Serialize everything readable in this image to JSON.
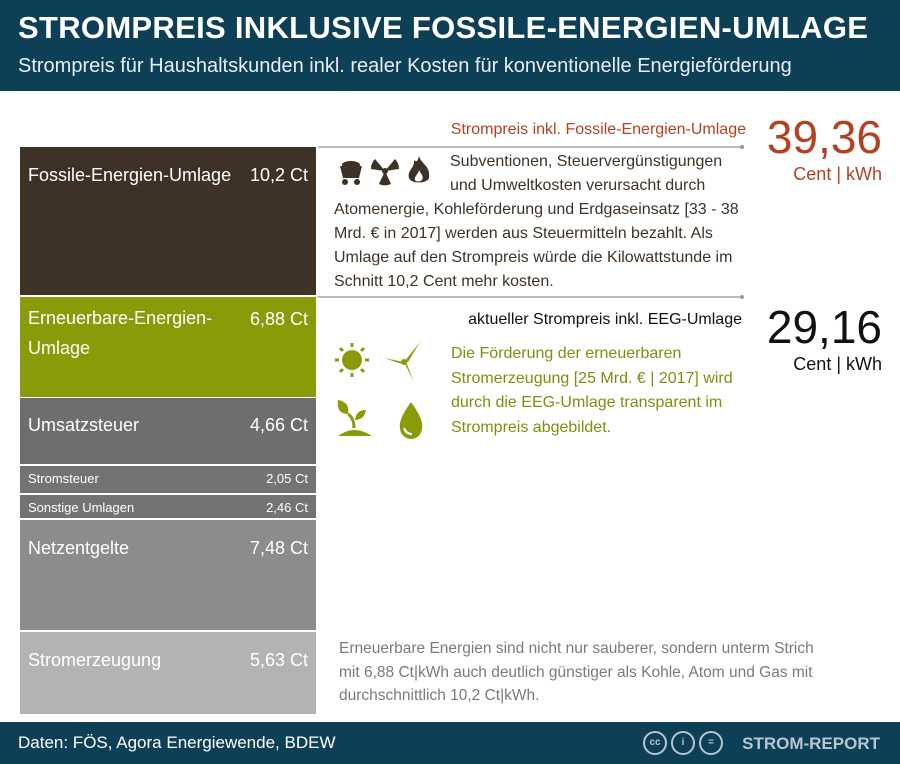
{
  "header": {
    "title": "STROMPREIS INKLUSIVE FOSSILE-ENERGIEN-UMLAGE",
    "subtitle": "Strompreis für Haushaltskunden inkl. realer Kosten für konventionelle Energieförderung"
  },
  "chart_data": {
    "type": "bar",
    "title": "Strompreis inkl. Fossile-Energien-Umlage",
    "unit": "Ct",
    "categories": [
      "Fossile-Energien-Umlage",
      "Erneuerbare-Energien-Umlage",
      "Umsatzsteuer",
      "Stromsteuer",
      "Sonstige Umlagen",
      "Netzentgelte",
      "Stromerzeugung"
    ],
    "values": [
      10.2,
      6.88,
      4.66,
      2.05,
      2.46,
      7.48,
      5.63
    ],
    "value_labels": [
      "10,2 Ct",
      "6,88 Ct",
      "4,66 Ct",
      "2,05 Ct",
      "2,46 Ct",
      "7,48 Ct",
      "5,63 Ct"
    ],
    "colors": [
      "#3e3226",
      "#8a9b0a",
      "#6e6e6e",
      "#737373",
      "#737373",
      "#8c8c8c",
      "#b3b3b3"
    ],
    "stacked": true
  },
  "totals": {
    "fossil": {
      "label": "Strompreis inkl. Fossile-Energien-Umlage",
      "value": "39,36",
      "unit": "Cent | kWh",
      "color": "#b5401f"
    },
    "current": {
      "label": "aktueller Strompreis inkl. EEG-Umlage",
      "value": "29,16",
      "unit": "Cent | kWh",
      "color": "#111111"
    }
  },
  "texts": {
    "fossil_l1": "Subventionen, Steuervergünstigungen",
    "fossil_l2": "und Umweltkosten verursacht durch",
    "fossil_rest": "Atomenergie, Kohleförderung und Erdgaseinsatz [33 - 38 Mrd. € in 2017] werden aus Steuermitteln bezahlt. Als Umlage auf den Strompreis würde die Kilowattstunde im Schnitt 10,2 Cent mehr kosten.",
    "eeg": "Die Förderung der erneuerbaren Stromerzeugung [25 Mrd. € | 2017] wird durch die EEG-Umlage transparent im Strompreis abgebildet.",
    "bottom": "Erneuerbare Energien sind nicht nur sauberer, sondern unterm Strich mit 6,88 Ct|kWh auch deutlich günstiger als Kohle, Atom und Gas mit durchschnittlich 10,2 Ct|kWh."
  },
  "footer": {
    "source": "Daten: FÖS, Agora Energiewende, BDEW",
    "brand": "STROM-REPORT",
    "license_icons": [
      "cc",
      "by",
      "nd"
    ]
  }
}
